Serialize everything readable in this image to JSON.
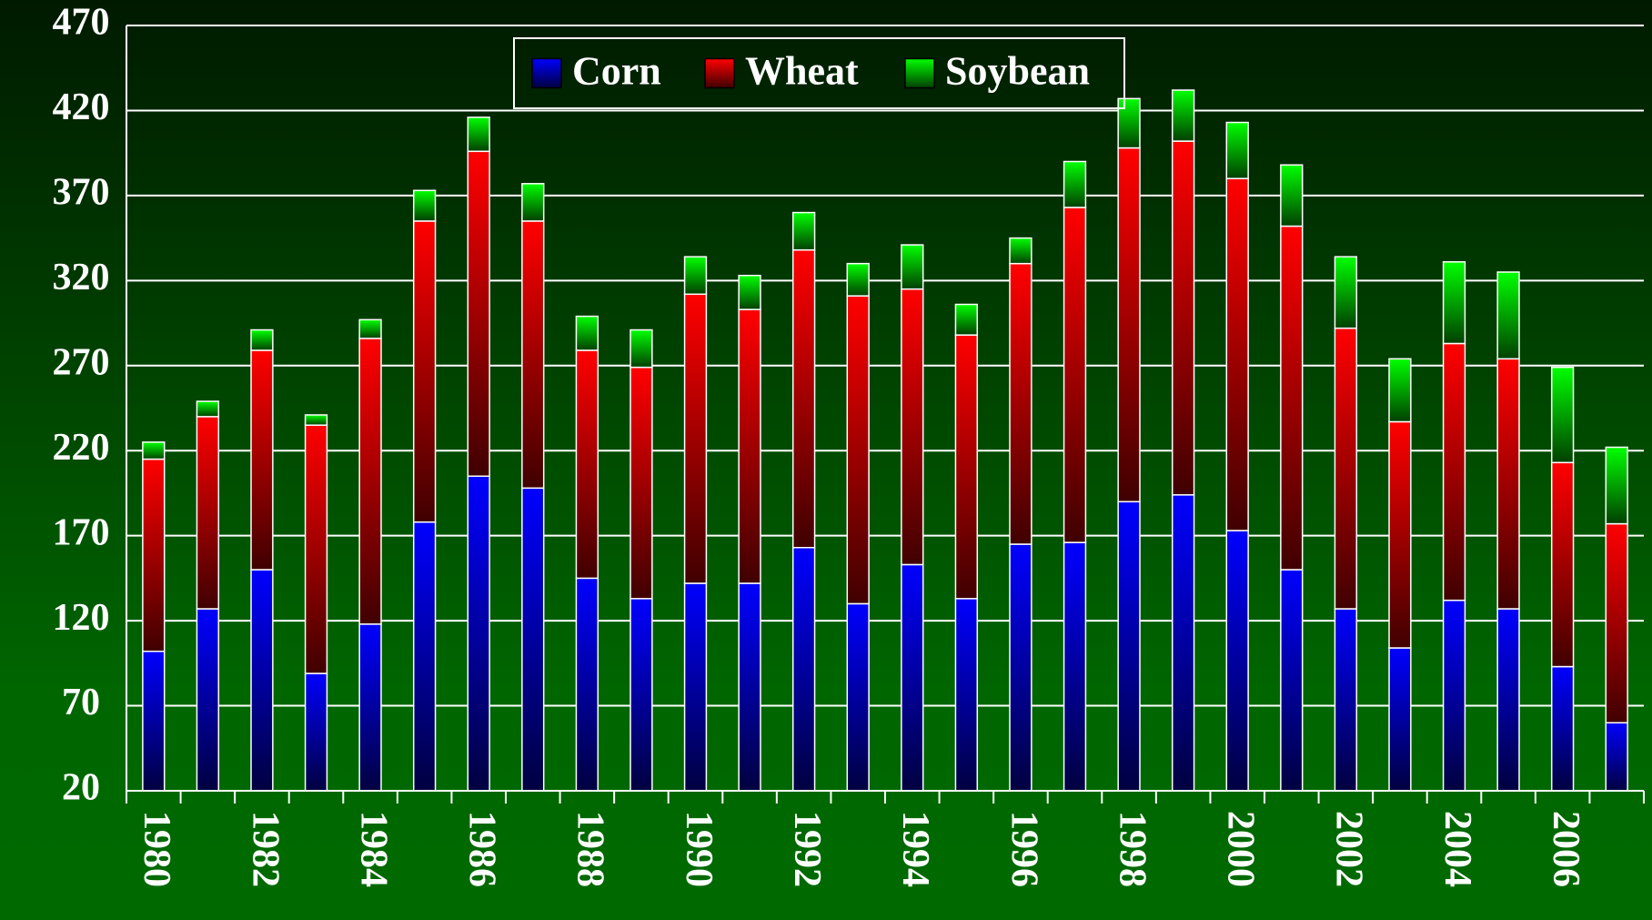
{
  "chart_data": {
    "type": "stacked_bar",
    "categories": [
      "1980",
      null,
      "1982",
      null,
      "1984",
      null,
      "1986",
      null,
      "1988",
      null,
      "1990",
      null,
      "1992",
      null,
      "1994",
      null,
      "1996",
      null,
      "1998",
      null,
      "2000",
      null,
      "2002",
      null,
      "2004",
      null,
      "2006",
      null
    ],
    "series": [
      {
        "name": "Corn",
        "color": "#0000ff",
        "values": [
          102,
          127,
          150,
          89,
          118,
          178,
          205,
          198,
          145,
          133,
          142,
          142,
          163,
          130,
          153,
          133,
          165,
          166,
          190,
          194,
          173,
          150,
          127,
          104,
          132,
          127,
          93,
          60
        ]
      },
      {
        "name": "Wheat",
        "color": "#ff0000",
        "values": [
          113,
          113,
          129,
          146,
          168,
          177,
          191,
          157,
          134,
          136,
          170,
          161,
          175,
          181,
          162,
          155,
          165,
          197,
          208,
          208,
          207,
          202,
          165,
          133,
          151,
          147,
          120,
          117
        ]
      },
      {
        "name": "Soybean",
        "color": "#00ff00",
        "values": [
          10,
          9,
          12,
          6,
          11,
          18,
          20,
          22,
          20,
          22,
          22,
          20,
          22,
          19,
          26,
          18,
          15,
          27,
          29,
          30,
          33,
          36,
          42,
          37,
          48,
          51,
          56,
          45
        ]
      }
    ],
    "ylim": [
      20,
      470
    ],
    "yticks": [
      20,
      70,
      120,
      170,
      220,
      270,
      320,
      370,
      420,
      470
    ],
    "grid": true,
    "legend": "top-center"
  }
}
